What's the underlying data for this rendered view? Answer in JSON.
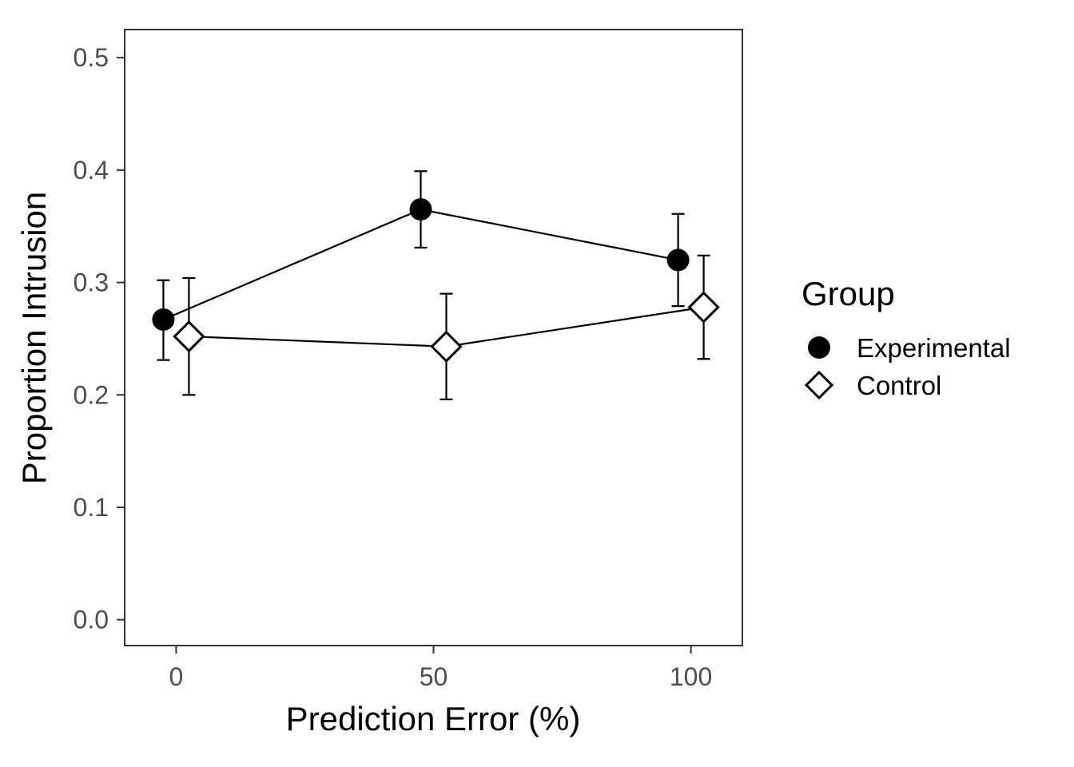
{
  "chart_data": {
    "type": "scatter",
    "xlabel": "Prediction Error (%)",
    "ylabel": "Proportion Intrusion",
    "xlim": [
      -10,
      110
    ],
    "ylim": [
      -0.023,
      0.525
    ],
    "x_ticks": [
      0,
      50,
      100
    ],
    "x_tick_labels": [
      "0",
      "50",
      "100"
    ],
    "y_ticks": [
      0.0,
      0.1,
      0.2,
      0.3,
      0.4,
      0.5
    ],
    "y_tick_labels": [
      "0.0",
      "0.1",
      "0.2",
      "0.3",
      "0.4",
      "0.5"
    ],
    "grid": false,
    "legend": {
      "title": "Group",
      "position": "right"
    },
    "series": [
      {
        "name": "Experimental",
        "marker": "filled-circle",
        "color": "#000000",
        "x": [
          0,
          50,
          100
        ],
        "y": [
          0.267,
          0.365,
          0.32
        ],
        "error_low": [
          0.231,
          0.331,
          0.279
        ],
        "error_high": [
          0.302,
          0.399,
          0.361
        ]
      },
      {
        "name": "Control",
        "marker": "open-diamond",
        "color": "#000000",
        "x": [
          0,
          50,
          100
        ],
        "y": [
          0.252,
          0.243,
          0.278
        ],
        "error_low": [
          0.2,
          0.196,
          0.232
        ],
        "error_high": [
          0.304,
          0.29,
          0.324
        ]
      }
    ]
  }
}
